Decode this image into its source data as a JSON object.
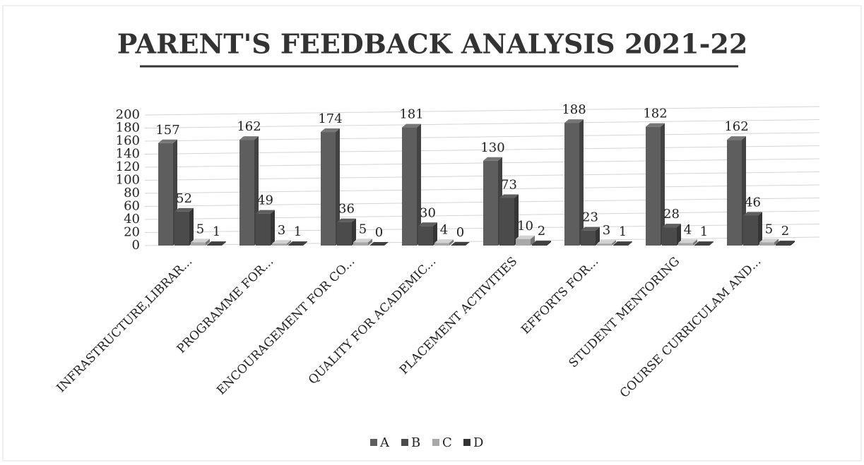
{
  "chart_data": {
    "type": "bar3d",
    "title": "PARENT'S FEEDBACK ANALYSIS 2021-22",
    "categories": [
      "INFRASTRUCTURE,LIBRAR...",
      "PROGRAMME FOR...",
      "ENCOURAGEMENT FOR CO...",
      "QUALITY FOR ACADEMIC...",
      "PLACEMENT ACTIVITIES",
      "EFFORTS FOR...",
      "STUDENT MENTORING",
      "COURSE CURRICULAM AND..."
    ],
    "series": [
      {
        "name": "A",
        "color": "#5e5e5e",
        "values": [
          157,
          162,
          174,
          181,
          130,
          188,
          182,
          162
        ]
      },
      {
        "name": "B",
        "color": "#4b4b4b",
        "values": [
          52,
          49,
          36,
          30,
          73,
          23,
          28,
          46
        ]
      },
      {
        "name": "C",
        "color": "#a8a8a8",
        "values": [
          5,
          3,
          5,
          4,
          10,
          3,
          4,
          5
        ]
      },
      {
        "name": "D",
        "color": "#333333",
        "values": [
          1,
          1,
          0,
          0,
          2,
          1,
          1,
          2
        ]
      }
    ],
    "ylim": [
      0,
      200
    ],
    "yticks": [
      0,
      20,
      40,
      60,
      80,
      100,
      120,
      140,
      160,
      180,
      200
    ],
    "grid": true,
    "legend": "bottom"
  }
}
